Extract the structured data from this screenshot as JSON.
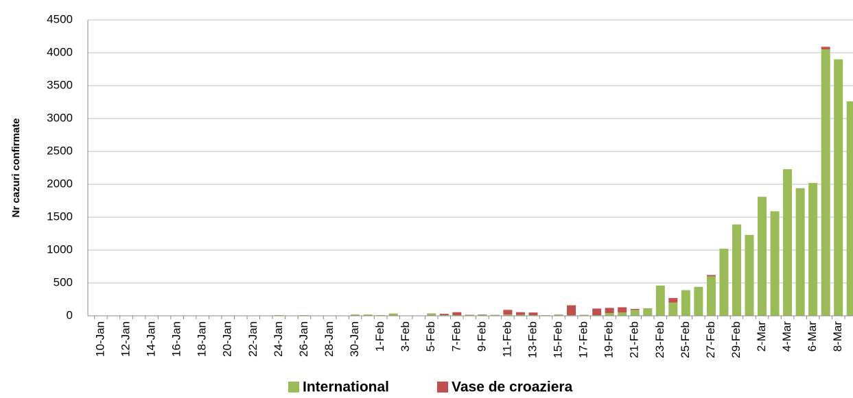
{
  "chart_data": {
    "type": "stacked_bar",
    "y_label": "Nr cazuri confirmate",
    "categories": [
      "10-Jan",
      null,
      "12-Jan",
      null,
      "14-Jan",
      null,
      "16-Jan",
      null,
      "18-Jan",
      null,
      "20-Jan",
      null,
      "22-Jan",
      null,
      "24-Jan",
      null,
      "26-Jan",
      null,
      "28-Jan",
      null,
      "30-Jan",
      null,
      "1-Feb",
      null,
      "3-Feb",
      null,
      "5-Feb",
      null,
      "7-Feb",
      null,
      "9-Feb",
      null,
      "11-Feb",
      null,
      "13-Feb",
      null,
      "15-Feb",
      null,
      "17-Feb",
      null,
      "19-Feb",
      null,
      "21-Feb",
      null,
      "23-Feb",
      null,
      "25-Feb",
      null,
      "27-Feb",
      null,
      "29-Feb",
      null,
      "2-Mar",
      null,
      "4-Mar",
      null,
      "6-Mar",
      null,
      "8-Mar",
      null
    ],
    "series": [
      {
        "name": "International",
        "color": "#9bbb59",
        "values": [
          0,
          0,
          0,
          0,
          0,
          0,
          0,
          0,
          0,
          0,
          0,
          0,
          0,
          0,
          10,
          5,
          10,
          5,
          5,
          5,
          20,
          20,
          10,
          35,
          5,
          5,
          30,
          10,
          10,
          10,
          15,
          15,
          20,
          15,
          10,
          10,
          20,
          10,
          15,
          10,
          40,
          50,
          90,
          115,
          460,
          200,
          390,
          440,
          600,
          1020,
          1390,
          1230,
          1810,
          1590,
          2230,
          1940,
          2020,
          4050,
          3900,
          3260
        ]
      },
      {
        "name": "Vase de croaziera",
        "color": "#c0504d",
        "values": [
          0,
          0,
          0,
          0,
          0,
          0,
          0,
          0,
          0,
          0,
          0,
          0,
          0,
          0,
          0,
          0,
          0,
          0,
          0,
          0,
          0,
          0,
          0,
          0,
          0,
          0,
          5,
          20,
          45,
          5,
          5,
          0,
          70,
          40,
          40,
          0,
          0,
          150,
          0,
          100,
          80,
          80,
          15,
          0,
          0,
          70,
          0,
          0,
          20,
          0,
          0,
          0,
          0,
          0,
          0,
          0,
          0,
          40,
          0,
          0
        ]
      }
    ],
    "ylim": [
      0,
      4500
    ],
    "yticks": [
      0,
      500,
      1000,
      1500,
      2000,
      2500,
      3000,
      3500,
      4000,
      4500
    ],
    "grid": true,
    "legend": "bottom"
  }
}
